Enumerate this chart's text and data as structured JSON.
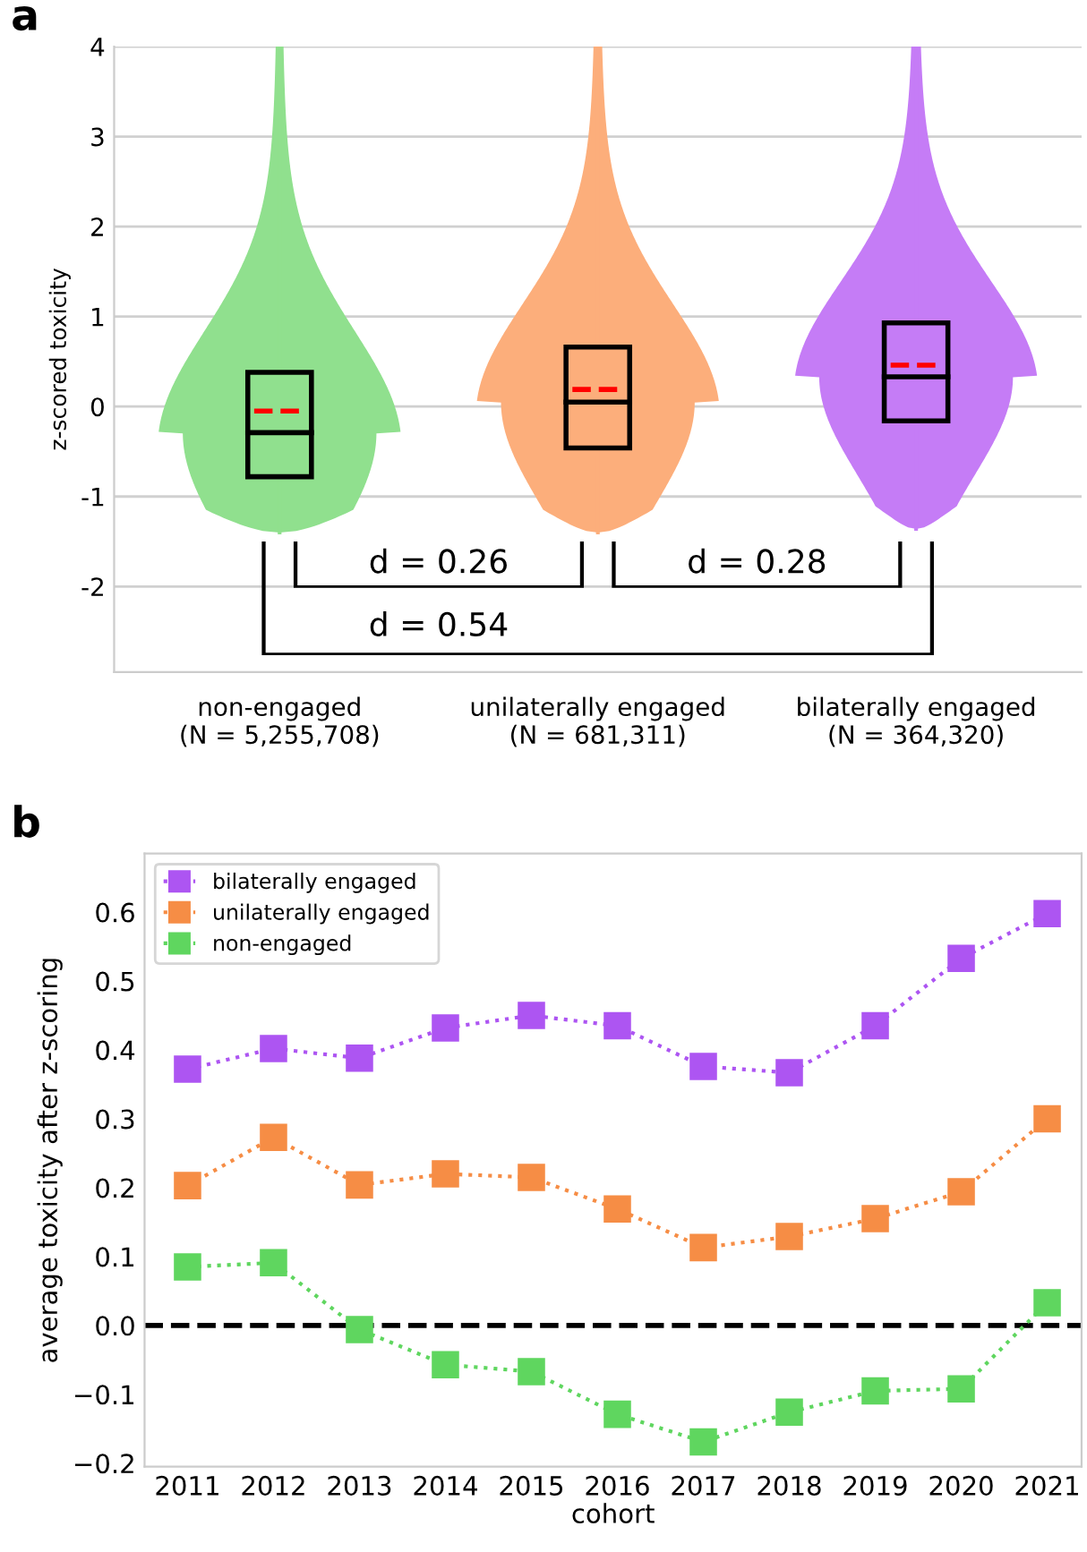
{
  "chart_data": [
    {
      "type": "box",
      "title": "a",
      "ylabel": "z-scored toxicity",
      "categories": [
        "non-engaged\n(N = 5,255,708)",
        "unilaterally engaged\n(N = 681,311)",
        "bilaterally engaged\n(N = 364,320)"
      ],
      "colors": [
        "#90e08e",
        "#fcae7b",
        "#c57cf6"
      ],
      "boxes": [
        {
          "low": -1.4,
          "q1": -0.78,
          "median": -0.29,
          "q3": 0.38,
          "high": 4.0,
          "mean": -0.05
        },
        {
          "low": -1.4,
          "q1": -0.46,
          "median": 0.05,
          "q3": 0.66,
          "high": 4.0,
          "mean": 0.19
        },
        {
          "low": -1.36,
          "q1": -0.16,
          "median": 0.33,
          "q3": 0.93,
          "high": 4.0,
          "mean": 0.46
        }
      ],
      "ylim": [
        -2.95,
        4
      ],
      "yticks": [
        -2,
        -1,
        0,
        1,
        2,
        3,
        4
      ],
      "grid": "y",
      "annotations": [
        "d = 0.26",
        "d = 0.28",
        "d = 0.54"
      ]
    },
    {
      "type": "line",
      "title": "b",
      "xlabel": "cohort",
      "ylabel": "average toxicity after z-scoring",
      "x": [
        2011,
        2012,
        2013,
        2014,
        2015,
        2016,
        2017,
        2018,
        2019,
        2020,
        2021
      ],
      "series": [
        {
          "name": "bilaterally engaged",
          "color": "#ad55f2",
          "values": [
            0.372,
            0.402,
            0.388,
            0.432,
            0.45,
            0.435,
            0.376,
            0.367,
            0.435,
            0.533,
            0.598
          ]
        },
        {
          "name": "unilaterally engaged",
          "color": "#f68d45",
          "values": [
            0.203,
            0.273,
            0.204,
            0.22,
            0.215,
            0.169,
            0.113,
            0.129,
            0.155,
            0.194,
            0.3
          ]
        },
        {
          "name": "non-engaged",
          "color": "#5fd65f",
          "values": [
            0.085,
            0.091,
            -0.006,
            -0.057,
            -0.067,
            -0.129,
            -0.169,
            -0.126,
            -0.095,
            -0.092,
            0.033
          ]
        }
      ],
      "xlim": [
        2010.5,
        2021.4
      ],
      "xticks": [
        2011,
        2012,
        2013,
        2014,
        2015,
        2016,
        2017,
        2018,
        2019,
        2020,
        2021
      ],
      "ylim": [
        -0.205,
        0.685
      ],
      "yticks": [
        {
          "value": -0.2,
          "label": "−0.2"
        },
        {
          "value": -0.1,
          "label": "−0.1"
        },
        {
          "value": 0.0,
          "label": "0.0"
        },
        {
          "value": 0.1,
          "label": "0.1"
        },
        {
          "value": 0.2,
          "label": "0.2"
        },
        {
          "value": 0.3,
          "label": "0.3"
        },
        {
          "value": 0.4,
          "label": "0.4"
        },
        {
          "value": 0.5,
          "label": "0.5"
        },
        {
          "value": 0.6,
          "label": "0.6"
        }
      ],
      "ref_lines": [
        {
          "axis": "y",
          "value": 0,
          "color": "#000000",
          "line_style": "dashed"
        }
      ],
      "marker": "square",
      "line_style": "dotted",
      "legend": "top left",
      "grid": false
    }
  ]
}
